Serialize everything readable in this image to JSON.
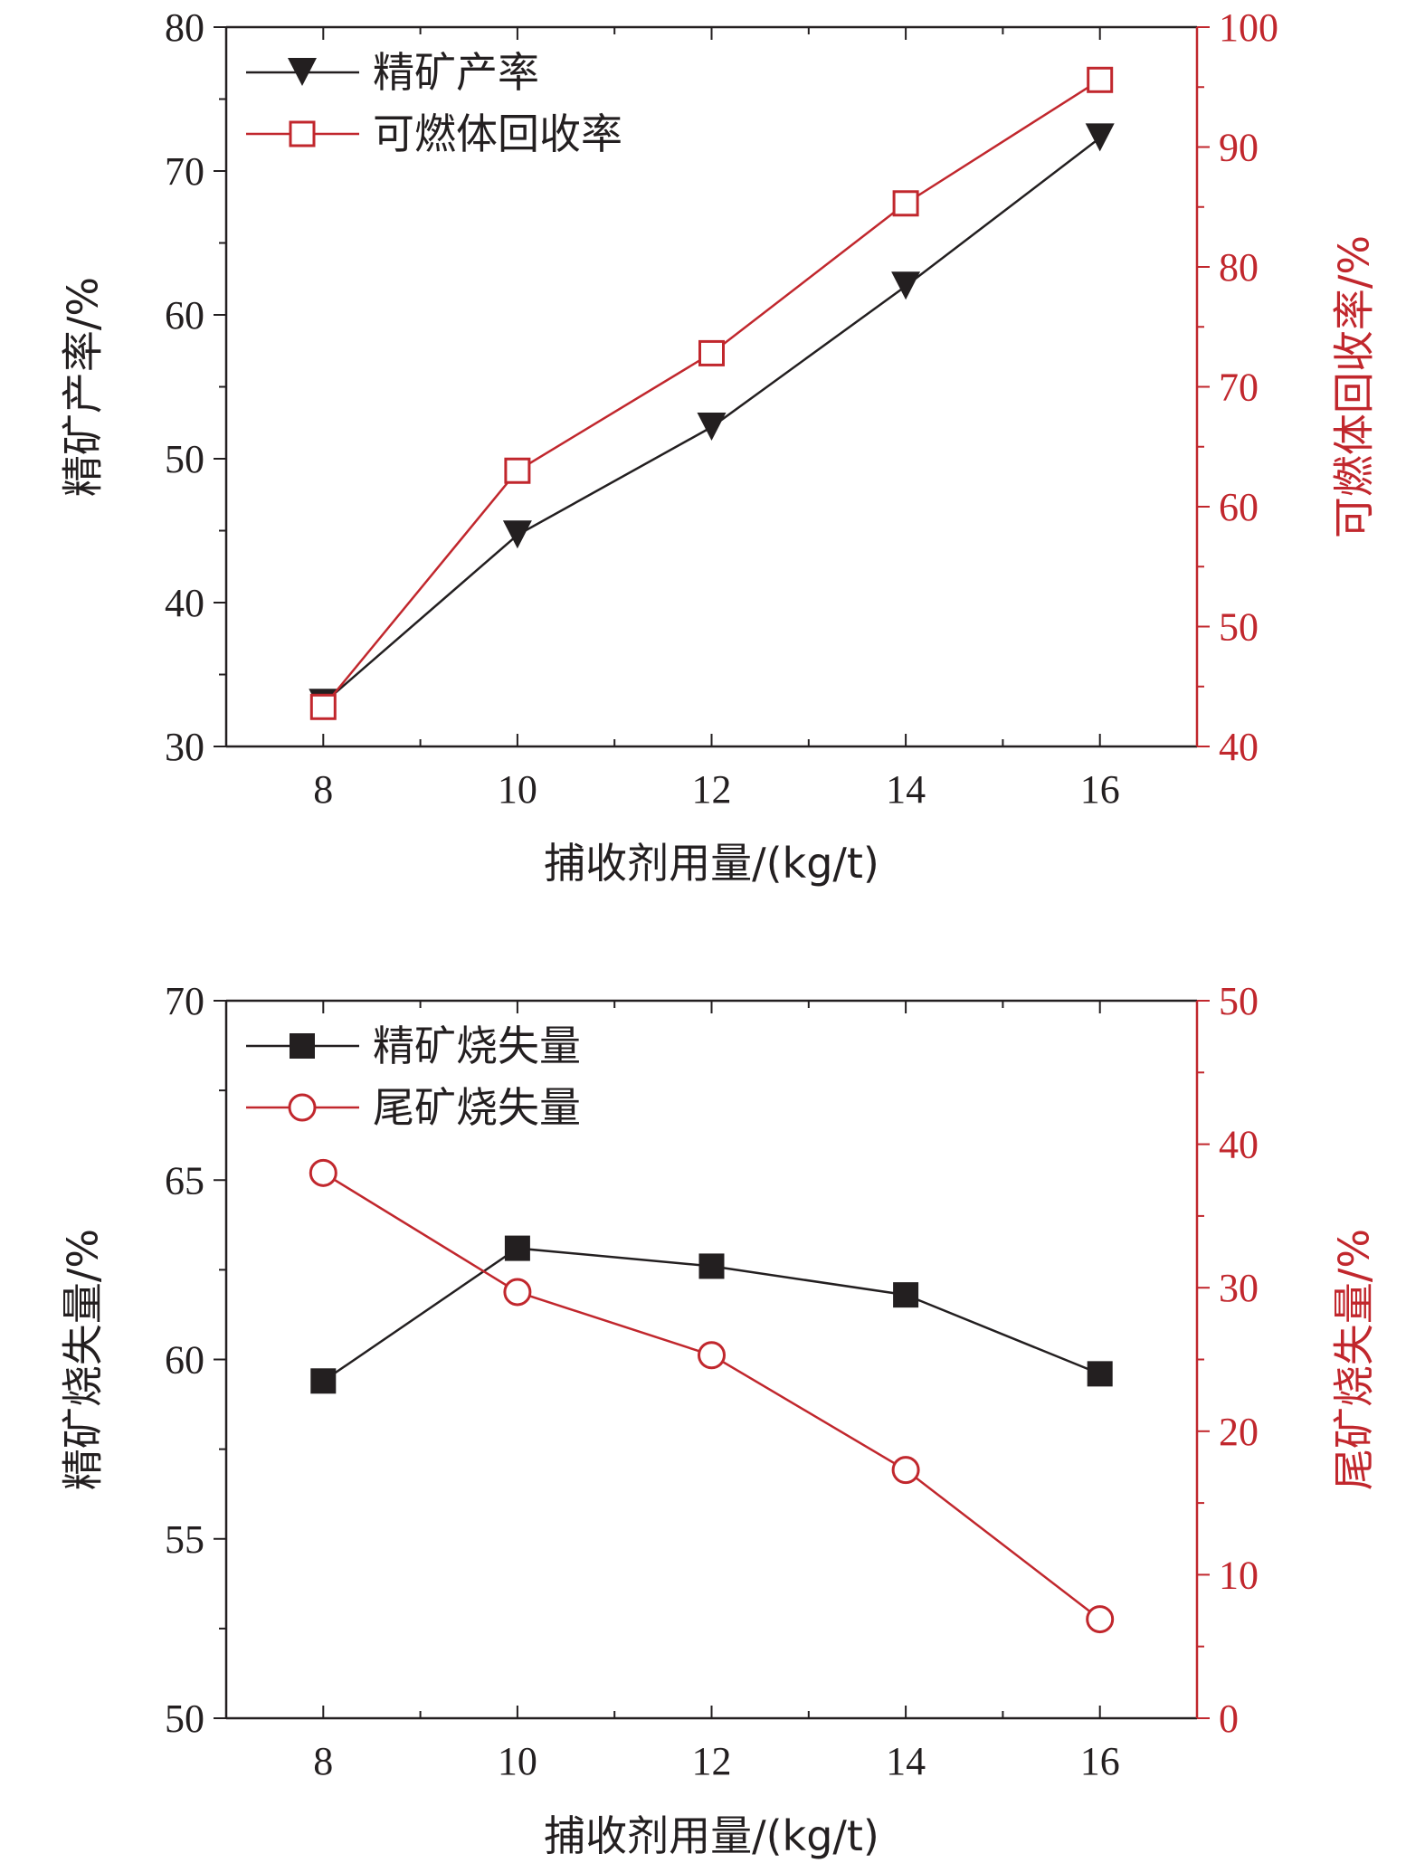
{
  "colors": {
    "primary": "#231f20",
    "secondary": "#c1272d"
  },
  "chart_data": [
    {
      "type": "line",
      "x": [
        8,
        10,
        12,
        14,
        16
      ],
      "xlim": [
        7,
        17
      ],
      "x_ticks": [
        8,
        10,
        12,
        14,
        16
      ],
      "xlabel": "捕收剂用量/(kg/t)",
      "ylabel": "精矿产率/%",
      "ylim": [
        30,
        80
      ],
      "y_ticks": [
        30,
        40,
        50,
        60,
        70,
        80
      ],
      "y2label": "可燃体回收率/%",
      "y2lim": [
        40,
        100
      ],
      "y2_ticks": [
        40,
        50,
        60,
        70,
        80,
        90,
        100
      ],
      "legend_position": "top-left",
      "series": [
        {
          "name": "精矿产率",
          "axis": "left",
          "marker": "triangle-down",
          "values": [
            33,
            44.7,
            52.2,
            62,
            72.3
          ]
        },
        {
          "name": "可燃体回收率",
          "axis": "right",
          "marker": "square-open",
          "values": [
            43.3,
            63,
            72.8,
            85.3,
            95.6
          ]
        }
      ]
    },
    {
      "type": "line",
      "x": [
        8,
        10,
        12,
        14,
        16
      ],
      "xlim": [
        7,
        17
      ],
      "x_ticks": [
        8,
        10,
        12,
        14,
        16
      ],
      "xlabel": "捕收剂用量/(kg/t)",
      "ylabel": "精矿烧失量/%",
      "ylim": [
        50,
        70
      ],
      "y_ticks": [
        50,
        55,
        60,
        65,
        70
      ],
      "y2label": "尾矿烧失量/%",
      "y2lim": [
        0,
        50
      ],
      "y2_ticks": [
        0,
        10,
        20,
        30,
        40,
        50
      ],
      "legend_position": "top-left",
      "series": [
        {
          "name": "精矿烧失量",
          "axis": "left",
          "marker": "square-filled",
          "values": [
            59.4,
            63.1,
            62.6,
            61.8,
            59.6
          ]
        },
        {
          "name": "尾矿烧失量",
          "axis": "right",
          "marker": "circle-open",
          "values": [
            38,
            29.7,
            25.3,
            17.3,
            6.9
          ]
        }
      ]
    }
  ]
}
